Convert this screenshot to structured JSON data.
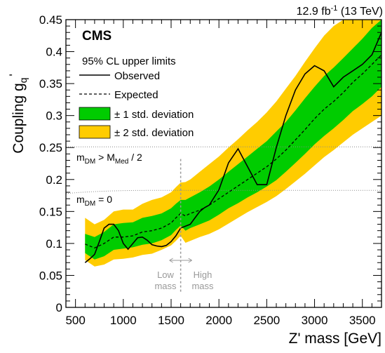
{
  "header": {
    "lumi": "12.9 fb",
    "lumi_exp": "-1",
    "energy": " (13 TeV)"
  },
  "chart_data": {
    "type": "line",
    "experiment": "CMS",
    "xlabel": "Z' mass [GeV]",
    "ylabel_main": "Coupling g",
    "ylabel_sub": "q",
    "ylabel_prime": "'",
    "xlim": [
      400,
      3700
    ],
    "ylim": [
      0,
      0.45
    ],
    "x_ticks": [
      500,
      1000,
      1500,
      2000,
      2500,
      3000,
      3500
    ],
    "y_ticks": [
      0,
      0.05,
      0.1,
      0.15,
      0.2,
      0.25,
      0.3,
      0.35,
      0.4,
      0.45
    ],
    "legend_title": "95% CL upper limits",
    "legend_position": "top-left",
    "legend": [
      {
        "label": "Observed",
        "style": "solid"
      },
      {
        "label": "Expected",
        "style": "dashed"
      },
      {
        "label": "± 1 std. deviation",
        "color": "#00cc00"
      },
      {
        "label": "± 2 std. deviation",
        "color": "#ffcc00"
      }
    ],
    "reference_lines": [
      {
        "label_main": "m",
        "label_sub": "DM",
        "label_rest": " > M",
        "label_sub2": "Med",
        "label_tail": " / 2",
        "y": 0.251
      },
      {
        "label_main": "m",
        "label_sub": "DM",
        "label_rest": " = 0",
        "label_sub2": "",
        "label_tail": "",
        "y_left": 0.178,
        "y_right": 0.183
      }
    ],
    "region_divider_x": 1600,
    "region_labels": {
      "low": [
        "Low",
        "mass"
      ],
      "high": [
        "High",
        "mass"
      ]
    },
    "series": [
      {
        "name": "Observed",
        "x": [
          600,
          650,
          700,
          750,
          800,
          850,
          900,
          950,
          1000,
          1050,
          1100,
          1150,
          1200,
          1250,
          1300,
          1350,
          1400,
          1450,
          1500,
          1550,
          1600,
          1650,
          1700,
          1750,
          1800,
          1850,
          1900,
          2000,
          2100,
          2200,
          2300,
          2400,
          2500,
          2600,
          2700,
          2800,
          2900,
          3000,
          3100,
          3200,
          3300,
          3400,
          3500,
          3600,
          3700
        ],
        "y": [
          0.07,
          0.076,
          0.083,
          0.103,
          0.124,
          0.13,
          0.13,
          0.12,
          0.1,
          0.091,
          0.1,
          0.109,
          0.11,
          0.105,
          0.098,
          0.096,
          0.095,
          0.097,
          0.103,
          0.112,
          0.124,
          0.127,
          0.13,
          0.14,
          0.15,
          0.156,
          0.16,
          0.184,
          0.226,
          0.248,
          0.22,
          0.192,
          0.192,
          0.25,
          0.3,
          0.34,
          0.365,
          0.378,
          0.37,
          0.345,
          0.36,
          0.37,
          0.38,
          0.395,
          0.43
        ]
      },
      {
        "name": "Expected",
        "x": [
          600,
          700,
          800,
          900,
          1000,
          1100,
          1200,
          1300,
          1400,
          1500,
          1550,
          1600,
          1650,
          1700,
          1800,
          1900,
          2000,
          2100,
          2200,
          2300,
          2400,
          2500,
          2600,
          2700,
          2800,
          2900,
          3000,
          3100,
          3200,
          3300,
          3400,
          3500,
          3600,
          3700
        ],
        "y": [
          0.099,
          0.093,
          0.1,
          0.11,
          0.11,
          0.112,
          0.118,
          0.12,
          0.124,
          0.132,
          0.14,
          0.147,
          0.143,
          0.147,
          0.152,
          0.16,
          0.17,
          0.18,
          0.19,
          0.2,
          0.21,
          0.22,
          0.232,
          0.246,
          0.262,
          0.278,
          0.295,
          0.31,
          0.322,
          0.336,
          0.352,
          0.365,
          0.38,
          0.395
        ]
      },
      {
        "name": "± 1 std. deviation",
        "x": [
          600,
          700,
          800,
          900,
          1000,
          1100,
          1200,
          1300,
          1400,
          1500,
          1550,
          1600,
          1650,
          1700,
          1800,
          1900,
          2000,
          2100,
          2200,
          2300,
          2400,
          2500,
          2600,
          2700,
          2800,
          2900,
          3000,
          3100,
          3200,
          3300,
          3400,
          3500,
          3600,
          3700
        ],
        "low": [
          0.085,
          0.075,
          0.08,
          0.09,
          0.092,
          0.094,
          0.098,
          0.1,
          0.105,
          0.113,
          0.121,
          0.128,
          0.12,
          0.124,
          0.13,
          0.136,
          0.145,
          0.155,
          0.163,
          0.172,
          0.18,
          0.189,
          0.199,
          0.212,
          0.226,
          0.24,
          0.255,
          0.268,
          0.28,
          0.293,
          0.307,
          0.318,
          0.33,
          0.345
        ],
        "high": [
          0.115,
          0.11,
          0.118,
          0.13,
          0.132,
          0.133,
          0.14,
          0.143,
          0.147,
          0.155,
          0.162,
          0.168,
          0.168,
          0.172,
          0.18,
          0.189,
          0.2,
          0.212,
          0.224,
          0.236,
          0.248,
          0.26,
          0.275,
          0.29,
          0.308,
          0.327,
          0.345,
          0.362,
          0.375,
          0.39,
          0.405,
          0.42,
          0.437,
          0.45
        ]
      },
      {
        "name": "± 2 std. deviation",
        "x": [
          600,
          700,
          800,
          900,
          1000,
          1100,
          1200,
          1300,
          1400,
          1500,
          1550,
          1600,
          1650,
          1700,
          1800,
          1900,
          2000,
          2100,
          2200,
          2300,
          2400,
          2500,
          2600,
          2700,
          2800,
          2900,
          3000,
          3100,
          3200,
          3300,
          3400,
          3500,
          3600,
          3700
        ],
        "low": [
          0.074,
          0.064,
          0.067,
          0.075,
          0.076,
          0.078,
          0.082,
          0.084,
          0.09,
          0.097,
          0.104,
          0.112,
          0.101,
          0.104,
          0.11,
          0.115,
          0.122,
          0.131,
          0.14,
          0.149,
          0.157,
          0.165,
          0.174,
          0.185,
          0.197,
          0.209,
          0.222,
          0.235,
          0.246,
          0.258,
          0.27,
          0.28,
          0.29,
          0.3
        ],
        "high": [
          0.14,
          0.13,
          0.137,
          0.15,
          0.153,
          0.153,
          0.162,
          0.168,
          0.172,
          0.18,
          0.188,
          0.195,
          0.196,
          0.2,
          0.212,
          0.224,
          0.236,
          0.25,
          0.263,
          0.277,
          0.29,
          0.305,
          0.322,
          0.342,
          0.362,
          0.384,
          0.405,
          0.425,
          0.44,
          0.45,
          0.45,
          0.45,
          0.45,
          0.45
        ]
      }
    ],
    "colors": {
      "band1": "#00cc00",
      "band2": "#ffcc00",
      "line": "#000000",
      "divider": "#999999",
      "reference": "#888888"
    }
  }
}
